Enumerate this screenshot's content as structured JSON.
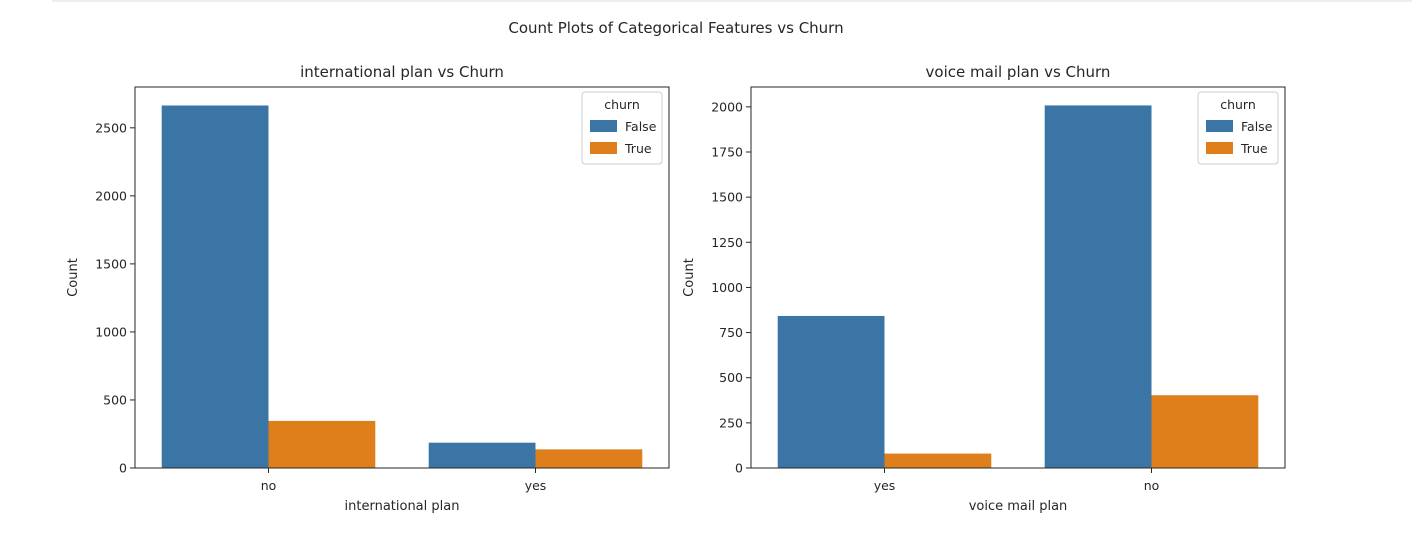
{
  "figure": {
    "suptitle": "Count Plots of Categorical Features vs Churn"
  },
  "colors": {
    "False": "#3a75a6",
    "True": "#df7f1c"
  },
  "chart_data": [
    {
      "type": "bar",
      "title": "international plan vs Churn",
      "xlabel": "international plan",
      "ylabel": "Count",
      "categories": [
        "no",
        "yes"
      ],
      "ylim": [
        0,
        2800
      ],
      "yticks": [
        0,
        500,
        1000,
        1500,
        2000,
        2500
      ],
      "legend": {
        "title": "churn",
        "position": "top-right"
      },
      "series": [
        {
          "name": "False",
          "values": [
            2664,
            186
          ]
        },
        {
          "name": "True",
          "values": [
            346,
            137
          ]
        }
      ]
    },
    {
      "type": "bar",
      "title": "voice mail plan vs Churn",
      "xlabel": "voice mail plan",
      "ylabel": "Count",
      "categories": [
        "yes",
        "no"
      ],
      "ylim": [
        0,
        2110
      ],
      "yticks": [
        0,
        250,
        500,
        750,
        1000,
        1250,
        1500,
        1750,
        2000
      ],
      "legend": {
        "title": "churn",
        "position": "top-right"
      },
      "series": [
        {
          "name": "False",
          "values": [
            842,
            2008
          ]
        },
        {
          "name": "True",
          "values": [
            80,
            403
          ]
        }
      ]
    }
  ]
}
